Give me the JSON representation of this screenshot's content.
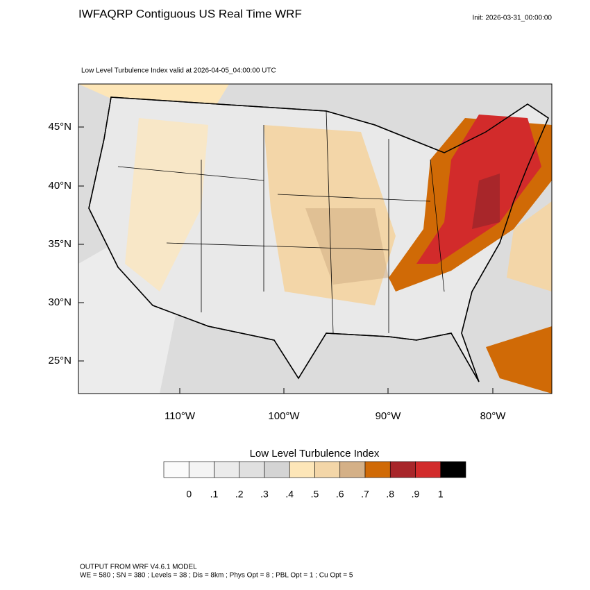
{
  "header": {
    "title": "IWFAQRP Contiguous US Real Time WRF",
    "init": "Init: 2026-03-31_00:00:00",
    "subtitle": "Low Level Turbulence Index valid at 2026-04-05_04:00:00 UTC"
  },
  "map": {
    "lat_labels": [
      "45°N",
      "40°N",
      "35°N",
      "30°N",
      "25°N"
    ],
    "lon_labels": [
      "110°W",
      "100°W",
      "90°W",
      "80°W"
    ]
  },
  "colorbar": {
    "title": "Low Level Turbulence Index",
    "labels": [
      "0",
      ".1",
      ".2",
      ".3",
      ".4",
      ".5",
      ".6",
      ".7",
      ".8",
      ".9",
      "1"
    ],
    "colors": [
      "#fbfbfb",
      "#f4f4f4",
      "#ebebeb",
      "#e0e0e0",
      "#d4d4d4",
      "#fde6b8",
      "#f3d6a8",
      "#d4b087",
      "#d06a06",
      "#a8262a",
      "#d22b2b",
      "#000000"
    ]
  },
  "footer": {
    "line1": "OUTPUT FROM WRF V4.6.1 MODEL",
    "line2": "WE = 580 ; SN = 380 ; Levels = 38 ; Dis = 8km ; Phys Opt = 8 ; PBL Opt = 1 ; Cu Opt = 5"
  }
}
